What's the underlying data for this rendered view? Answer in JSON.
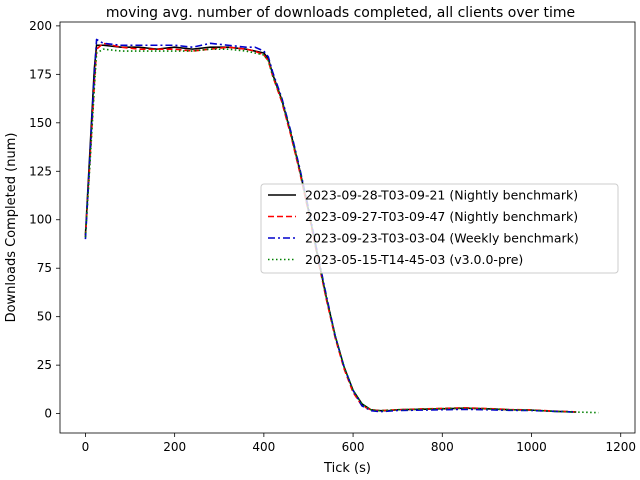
{
  "chart_data": {
    "type": "line",
    "title": "moving avg. number of downloads completed, all clients over time",
    "xlabel": "Tick (s)",
    "ylabel": "Downloads Completed (num)",
    "xlim": [
      -57,
      1232
    ],
    "ylim": [
      -10,
      202
    ],
    "xticks": [
      0,
      200,
      400,
      600,
      800,
      1000,
      1200
    ],
    "yticks": [
      0,
      25,
      50,
      75,
      100,
      125,
      150,
      175,
      200
    ],
    "grid": false,
    "legend_position": "center-right",
    "series": [
      {
        "name": "2023-09-28-T03-09-21 (Nightly benchmark)",
        "color": "#000000",
        "dash": "solid",
        "x": [
          0,
          10,
          20,
          25,
          40,
          80,
          120,
          160,
          200,
          240,
          280,
          320,
          360,
          380,
          400,
          410,
          420,
          440,
          460,
          480,
          500,
          520,
          540,
          560,
          580,
          600,
          620,
          640,
          660,
          680,
          700,
          750,
          800,
          850,
          900,
          950,
          1000,
          1050,
          1100
        ],
        "y": [
          92,
          135,
          178,
          190,
          190,
          189,
          189,
          188,
          189,
          188,
          189,
          189,
          188,
          187,
          186,
          183,
          175,
          162,
          145,
          126,
          105,
          82,
          60,
          40,
          24,
          12,
          5,
          2,
          1.5,
          1.5,
          2,
          2.2,
          2.5,
          2.8,
          2.5,
          2,
          1.8,
          1.2,
          0.8
        ]
      },
      {
        "name": "2023-09-27-T03-09-47 (Nightly benchmark)",
        "color": "#ff0000",
        "dash": "dashed",
        "x": [
          0,
          10,
          20,
          25,
          40,
          80,
          120,
          160,
          200,
          240,
          280,
          320,
          360,
          380,
          400,
          410,
          420,
          440,
          460,
          480,
          500,
          520,
          540,
          560,
          580,
          600,
          620,
          640,
          660,
          680,
          700,
          750,
          800,
          850,
          900,
          950,
          1000,
          1050,
          1100
        ],
        "y": [
          91,
          130,
          170,
          188,
          191,
          189,
          188,
          188,
          188,
          187,
          188,
          189,
          188,
          187,
          185,
          182,
          174,
          161,
          144,
          125,
          104,
          81,
          59,
          39,
          23,
          11,
          4,
          2,
          1.5,
          1.8,
          2,
          2.4,
          2.7,
          3,
          2.6,
          2.1,
          1.9,
          1.3,
          0.9
        ]
      },
      {
        "name": "2023-09-23-T03-03-04 (Weekly benchmark)",
        "color": "#0000cc",
        "dash": "dashdot",
        "x": [
          0,
          10,
          20,
          25,
          40,
          80,
          120,
          160,
          200,
          240,
          280,
          320,
          360,
          380,
          400,
          410,
          420,
          440,
          460,
          480,
          500,
          520,
          540,
          560,
          580,
          600,
          620,
          640,
          660,
          680,
          700,
          750,
          800,
          850,
          900,
          950,
          1000,
          1050,
          1100
        ],
        "y": [
          90,
          132,
          175,
          193,
          191,
          190,
          190,
          190,
          190,
          189,
          191,
          190,
          189,
          189,
          187,
          184,
          176,
          163,
          146,
          127,
          106,
          83,
          61,
          40,
          24,
          12,
          4,
          1.5,
          1,
          1.3,
          1.6,
          1.8,
          2,
          2.2,
          2,
          1.7,
          1.6,
          1.2,
          0.8
        ]
      },
      {
        "name": "2023-05-15-T14-45-03 (v3.0.0-pre)",
        "color": "#008000",
        "dash": "dotted",
        "x": [
          0,
          10,
          20,
          25,
          40,
          80,
          120,
          160,
          200,
          240,
          280,
          320,
          360,
          380,
          400,
          410,
          420,
          440,
          460,
          480,
          500,
          520,
          540,
          560,
          580,
          600,
          620,
          640,
          660,
          680,
          700,
          750,
          800,
          850,
          900,
          950,
          1000,
          1050,
          1100,
          1150
        ],
        "y": [
          91,
          128,
          168,
          186,
          188,
          187,
          187,
          187,
          187,
          187,
          188,
          188,
          187,
          186,
          185,
          182,
          174,
          162,
          145,
          126,
          105,
          82,
          60,
          40,
          24,
          12,
          5,
          2,
          1.5,
          1.8,
          2,
          2.3,
          2.6,
          2.8,
          2.5,
          2,
          1.8,
          1.2,
          0.8,
          0.5
        ]
      }
    ]
  }
}
